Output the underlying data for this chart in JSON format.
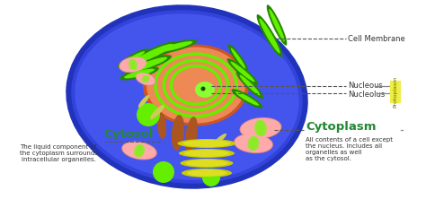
{
  "bg_color": "#ffffff",
  "cell_border_color": "#2233bb",
  "cell_fill_color": "#3344dd",
  "cell_inner_color": "#4455ee",
  "nucleus_border_color": "#cc5522",
  "nucleus_fill_color": "#ee8855",
  "nucleolus_color": "#88ff33",
  "nucleolus_dot_color": "#224400",
  "cytoplasm_label_color": "#228833",
  "cytosol_label_color": "#228833",
  "protoplasm_bg": "#eeee44",
  "protoplasm_text_color": "#666600",
  "dashed_color": "#555555",
  "annotation_text_color": "#333333",
  "label_cell_membrane": "Cell Membrane",
  "label_nucleus": "Nucleous",
  "label_nucleolus": "Nucleolus",
  "label_cytoplasm": "Cytoplasm",
  "label_cytosol": "Cytosol",
  "label_protoplasm": "Protoplasm",
  "desc_cytoplasm": "All contents of a cell except\nthe nucleus. Includes all\norganelles as well\nas the cytosol.",
  "desc_cytosol": "The liquid component of\nthe cytoplasm surrounds\nintracellular organelles.",
  "green_organelle": "#66ee00",
  "pink_organelle": "#ffaaaa",
  "brown_organelle": "#aa5522",
  "yellow_organelle": "#dddd22",
  "dark_green": "#228800",
  "bright_green": "#88ee22"
}
